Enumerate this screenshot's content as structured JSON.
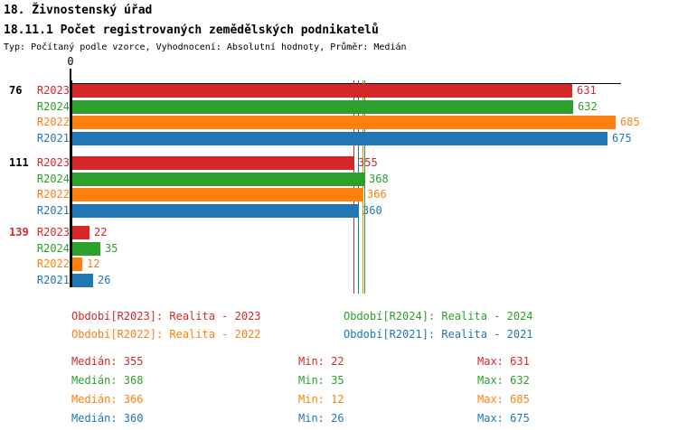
{
  "header": {
    "title_line1": "18. Živnostenský úřad",
    "title_line2": "18.11.1 Počet registrovaných zemědělských podnikatelů",
    "subtitle": "Typ: Počítaný podle vzorce, Vyhodnocení: Absolutní hodnoty, Průměr: Medián"
  },
  "colors": {
    "R2023": "#d62728",
    "R2024": "#2ca02c",
    "R2022": "#ff7f0e",
    "R2021": "#1f77b4",
    "axis": "#000000"
  },
  "chart_data": {
    "type": "bar",
    "orientation": "horizontal",
    "title": "18.11.1 Počet registrovaných zemědělských podnikatelů",
    "xlabel": "",
    "ylabel": "",
    "axis": {
      "origin_label": "0",
      "min": 0,
      "max": 690,
      "gridlines": false
    },
    "series_order": [
      "R2023",
      "R2024",
      "R2022",
      "R2021"
    ],
    "legend_position": "bottom",
    "groups": [
      {
        "label": "76",
        "label_color": "#000000",
        "values": {
          "R2023": 631,
          "R2024": 632,
          "R2022": 685,
          "R2021": 675
        }
      },
      {
        "label": "111",
        "label_color": "#000000",
        "values": {
          "R2023": 355,
          "R2024": 368,
          "R2022": 366,
          "R2021": 360
        }
      },
      {
        "label": "139",
        "label_color": "#d62728",
        "values": {
          "R2023": 22,
          "R2024": 35,
          "R2022": 12,
          "R2021": 26
        }
      }
    ],
    "median_lines": [
      {
        "series": "R2023",
        "value": 355
      },
      {
        "series": "R2021",
        "value": 360
      },
      {
        "series": "R2022",
        "value": 366
      },
      {
        "series": "R2024",
        "value": 368
      }
    ]
  },
  "legend": {
    "items": [
      {
        "series": "R2023",
        "label": "Období[R2023]: Realita - 2023"
      },
      {
        "series": "R2024",
        "label": "Období[R2024]: Realita - 2024"
      },
      {
        "series": "R2022",
        "label": "Období[R2022]: Realita - 2022"
      },
      {
        "series": "R2021",
        "label": "Období[R2021]: Realita - 2021"
      }
    ]
  },
  "stats": {
    "labels": {
      "median": "Medián",
      "min": "Min",
      "max": "Max"
    },
    "rows": [
      {
        "series": "R2023",
        "median": 355,
        "min": 22,
        "max": 631
      },
      {
        "series": "R2024",
        "median": 368,
        "min": 35,
        "max": 632
      },
      {
        "series": "R2022",
        "median": 366,
        "min": 12,
        "max": 685
      },
      {
        "series": "R2021",
        "median": 360,
        "min": 26,
        "max": 675
      }
    ]
  }
}
